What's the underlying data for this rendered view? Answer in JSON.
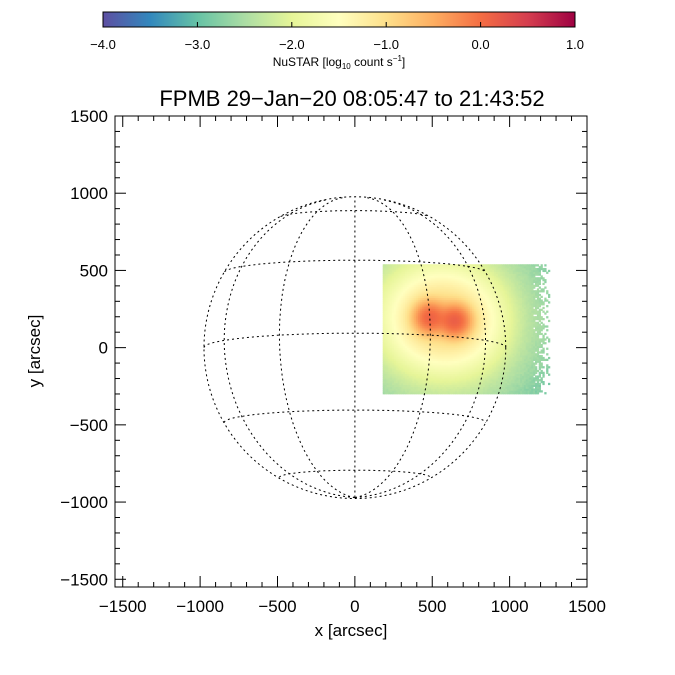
{
  "chart_data": {
    "type": "heatmap",
    "title": "FPMB 29−Jan−20 08:05:47 to 21:43:52",
    "xlabel": "x [arcsec]",
    "ylabel": "y [arcsec]",
    "xlim": [
      -1550,
      1500
    ],
    "ylim": [
      -1550,
      1500
    ],
    "xticks": [
      -1500,
      -1000,
      -500,
      0,
      500,
      1000,
      1500
    ],
    "yticks": [
      -1500,
      -1000,
      -500,
      0,
      500,
      1000,
      1500
    ],
    "xtick_labels": [
      "−1500",
      "−1000",
      "−500",
      "0",
      "500",
      "1000",
      "1500"
    ],
    "ytick_labels": [
      "−1500",
      "−1000",
      "−500",
      "0",
      "500",
      "1000",
      "1500"
    ],
    "colorbar": {
      "label_main": "NuSTAR [log",
      "label_sub": "10",
      "label_mid": " count s",
      "label_sup": "−1",
      "label_end": "]",
      "range": [
        -4.0,
        1.0
      ],
      "ticks": [
        -4.0,
        -3.0,
        -2.0,
        -1.0,
        0.0,
        1.0
      ],
      "tick_labels": [
        "−4.0",
        "−3.0",
        "−2.0",
        "−1.0",
        "0.0",
        "1.0"
      ],
      "colormap": [
        "#5e4fa2",
        "#3288bd",
        "#66c2a5",
        "#abdda4",
        "#e6f598",
        "#ffffbf",
        "#fee08b",
        "#fdae61",
        "#f46d43",
        "#d53e4f",
        "#9e0142"
      ]
    },
    "solar_disk": {
      "radius_arcsec": 975,
      "grid_spacing_deg": 30,
      "b0_deg": -5.5
    },
    "emission_region": {
      "x_range": [
        180,
        1250
      ],
      "y_range": [
        -300,
        540
      ],
      "background_log_rate": -3.1,
      "sources": [
        {
          "x": 480,
          "y": 190,
          "peak_log_rate": 0.05
        },
        {
          "x": 640,
          "y": 170,
          "peak_log_rate": 0.1
        }
      ]
    }
  }
}
